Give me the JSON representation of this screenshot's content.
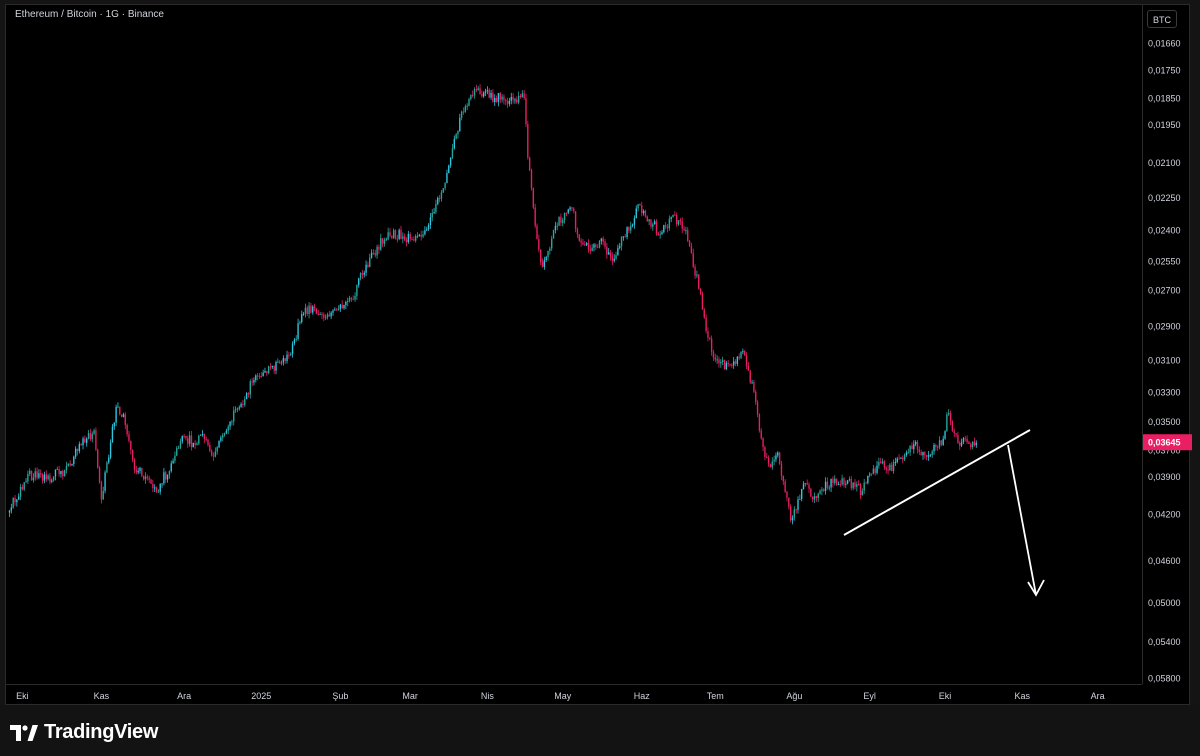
{
  "header": {
    "title": "Ethereum / Bitcoin · 1G · Binance",
    "currency": "BTC"
  },
  "footer": {
    "brand": "TradingView"
  },
  "colors": {
    "up": "#26a69a",
    "up_bright": "#2fc6e0",
    "down": "#e91e63",
    "background": "#000000",
    "annotation": "#ffffff"
  },
  "chart_data": {
    "type": "candlestick",
    "y_scale": "inverted-log",
    "y_tick_labels": [
      "0,01660",
      "0,01750",
      "0,01850",
      "0,01950",
      "0,02100",
      "0,02250",
      "0,02400",
      "0,02550",
      "0,02700",
      "0,02900",
      "0,03100",
      "0,03300",
      "0,03500",
      "0,03700",
      "0,03900",
      "0,04200",
      "0,04600",
      "0,05000",
      "0,05400",
      "0,05800"
    ],
    "x_tick_labels": [
      "Eki",
      "Kas",
      "Ara",
      "2025",
      "Şub",
      "Mar",
      "Nis",
      "May",
      "Haz",
      "Tem",
      "Ağu",
      "Eyl",
      "Eki",
      "Kas",
      "Ara"
    ],
    "last_price": "0,03645",
    "series_anchors_day_close": [
      [
        0,
        0.0417
      ],
      [
        10,
        0.0388
      ],
      [
        20,
        0.0392
      ],
      [
        30,
        0.0385
      ],
      [
        35,
        0.0375
      ],
      [
        42,
        0.0362
      ],
      [
        46,
        0.0356
      ],
      [
        50,
        0.0408
      ],
      [
        58,
        0.034
      ],
      [
        62,
        0.0345
      ],
      [
        68,
        0.0385
      ],
      [
        74,
        0.039
      ],
      [
        80,
        0.0402
      ],
      [
        88,
        0.038
      ],
      [
        94,
        0.036
      ],
      [
        100,
        0.0365
      ],
      [
        106,
        0.0362
      ],
      [
        111,
        0.0375
      ],
      [
        120,
        0.035
      ],
      [
        126,
        0.0338
      ],
      [
        132,
        0.0324
      ],
      [
        140,
        0.0318
      ],
      [
        146,
        0.0311
      ],
      [
        152,
        0.0307
      ],
      [
        154,
        0.03
      ],
      [
        160,
        0.0283
      ],
      [
        166,
        0.028
      ],
      [
        172,
        0.0285
      ],
      [
        180,
        0.0278
      ],
      [
        186,
        0.0275
      ],
      [
        192,
        0.0262
      ],
      [
        200,
        0.0248
      ],
      [
        206,
        0.0241
      ],
      [
        214,
        0.0243
      ],
      [
        220,
        0.0245
      ],
      [
        225,
        0.0242
      ],
      [
        230,
        0.0232
      ],
      [
        236,
        0.0221
      ],
      [
        240,
        0.0208
      ],
      [
        246,
        0.019
      ],
      [
        252,
        0.0184
      ],
      [
        258,
        0.0183
      ],
      [
        264,
        0.0185
      ],
      [
        272,
        0.0186
      ],
      [
        280,
        0.0185
      ],
      [
        282,
        0.0208
      ],
      [
        286,
        0.0238
      ],
      [
        290,
        0.0258
      ],
      [
        293,
        0.025
      ],
      [
        296,
        0.024
      ],
      [
        302,
        0.0232
      ],
      [
        306,
        0.023
      ],
      [
        310,
        0.0245
      ],
      [
        316,
        0.025
      ],
      [
        322,
        0.0244
      ],
      [
        328,
        0.0255
      ],
      [
        334,
        0.0243
      ],
      [
        338,
        0.0238
      ],
      [
        342,
        0.0228
      ],
      [
        348,
        0.0235
      ],
      [
        354,
        0.0242
      ],
      [
        360,
        0.0234
      ],
      [
        368,
        0.024
      ],
      [
        372,
        0.0258
      ],
      [
        374,
        0.0262
      ],
      [
        378,
        0.0285
      ],
      [
        382,
        0.0305
      ],
      [
        386,
        0.0312
      ],
      [
        392,
        0.0313
      ],
      [
        396,
        0.0308
      ],
      [
        400,
        0.0307
      ],
      [
        405,
        0.033
      ],
      [
        410,
        0.0368
      ],
      [
        414,
        0.0383
      ],
      [
        418,
        0.0372
      ],
      [
        422,
        0.0402
      ],
      [
        425,
        0.0425
      ],
      [
        429,
        0.0408
      ],
      [
        433,
        0.0395
      ],
      [
        437,
        0.0408
      ],
      [
        442,
        0.04
      ],
      [
        448,
        0.0395
      ],
      [
        452,
        0.0396
      ],
      [
        456,
        0.0393
      ],
      [
        460,
        0.0398
      ],
      [
        464,
        0.0401
      ],
      [
        466,
        0.0395
      ],
      [
        470,
        0.0384
      ],
      [
        474,
        0.038
      ],
      [
        478,
        0.0385
      ],
      [
        482,
        0.0379
      ],
      [
        488,
        0.0372
      ],
      [
        492,
        0.0366
      ],
      [
        496,
        0.0374
      ],
      [
        500,
        0.0374
      ],
      [
        504,
        0.0368
      ],
      [
        508,
        0.0362
      ],
      [
        510,
        0.0345
      ],
      [
        512,
        0.035
      ],
      [
        516,
        0.0365
      ],
      [
        520,
        0.0362
      ],
      [
        523,
        0.0368
      ],
      [
        526,
        0.0365
      ]
    ],
    "annotations": [
      {
        "type": "trendline",
        "label": ""
      },
      {
        "type": "arrow",
        "direction": "down",
        "label": ""
      }
    ]
  }
}
